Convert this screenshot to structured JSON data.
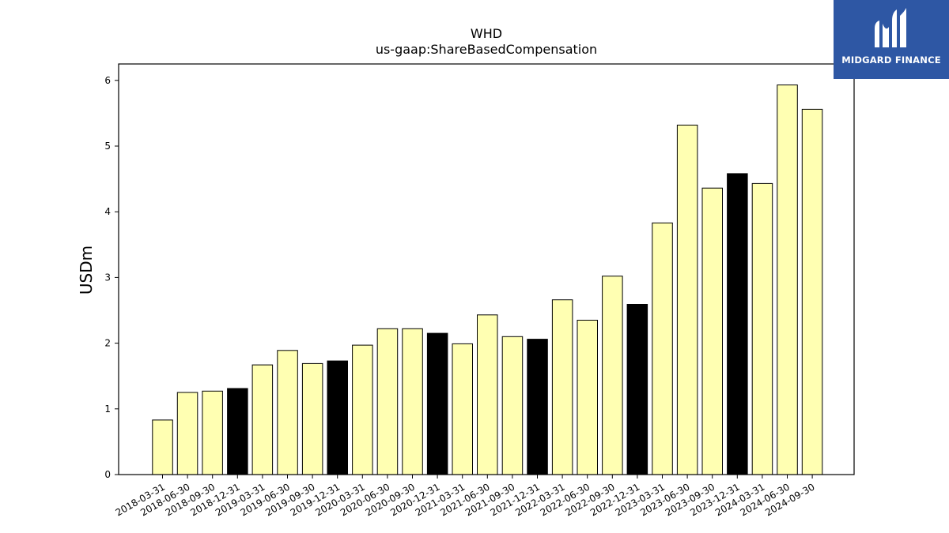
{
  "brand": {
    "name": "MIDGARD FINANCE",
    "color": "#2e57a4"
  },
  "chart_data": {
    "type": "bar",
    "title": "WHD",
    "subtitle": "us-gaap:ShareBasedCompensation",
    "xlabel": "",
    "ylabel": "USDm",
    "ylim": [
      0,
      6.25
    ],
    "yticks": [
      "0",
      "1",
      "2",
      "3",
      "4",
      "5",
      "6"
    ],
    "grid": false,
    "categories": [
      "2018-03-31",
      "2018-06-30",
      "2018-09-30",
      "2018-12-31",
      "2019-03-31",
      "2019-06-30",
      "2019-09-30",
      "2019-12-31",
      "2020-03-31",
      "2020-06-30",
      "2020-09-30",
      "2020-12-31",
      "2021-03-31",
      "2021-06-30",
      "2021-09-30",
      "2021-12-31",
      "2022-03-31",
      "2022-06-30",
      "2022-09-30",
      "2022-12-31",
      "2023-03-31",
      "2023-06-30",
      "2023-09-30",
      "2023-12-31",
      "2024-03-31",
      "2024-06-30",
      "2024-09-30"
    ],
    "values": [
      0.83,
      1.25,
      1.27,
      1.31,
      1.67,
      1.89,
      1.69,
      1.73,
      1.97,
      2.22,
      2.22,
      2.15,
      1.99,
      2.43,
      2.1,
      2.06,
      2.66,
      2.35,
      3.02,
      2.59,
      3.83,
      5.32,
      4.36,
      4.58,
      4.43,
      5.93,
      5.56
    ],
    "colors": {
      "quarter": "#ffffb2",
      "year_end": "#000000",
      "edge": "#000000"
    },
    "highlight_year_end": true
  }
}
